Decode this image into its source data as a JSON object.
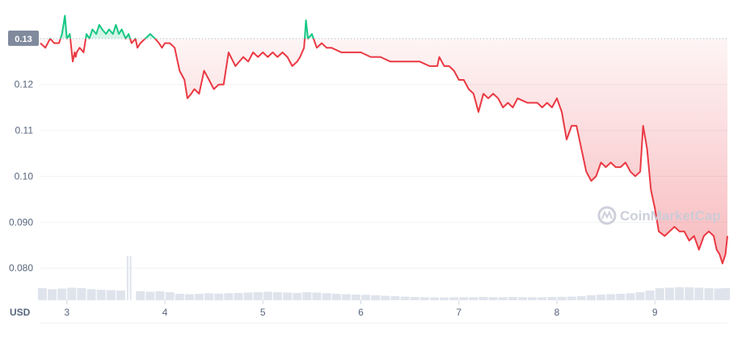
{
  "chart_data": {
    "type": "line",
    "currency_label": "USD",
    "reference_value": 0.13,
    "reference_label": "0.13",
    "ylim": [
      0.073,
      0.137
    ],
    "xlim": [
      2.73,
      9.74
    ],
    "y_ticks": [
      {
        "value": 0.08,
        "label": "0.080"
      },
      {
        "value": 0.09,
        "label": "0.090"
      },
      {
        "value": 0.1,
        "label": "0.10"
      },
      {
        "value": 0.11,
        "label": "0.11"
      },
      {
        "value": 0.12,
        "label": "0.12"
      }
    ],
    "x_ticks": [
      {
        "value": 3,
        "label": "3"
      },
      {
        "value": 4,
        "label": "4"
      },
      {
        "value": 5,
        "label": "5"
      },
      {
        "value": 6,
        "label": "6"
      },
      {
        "value": 7,
        "label": "7"
      },
      {
        "value": 8,
        "label": "8"
      },
      {
        "value": 9,
        "label": "9"
      }
    ],
    "colors": {
      "above": "#16c784",
      "below": "#ea3943",
      "volume": "#dfe4ec",
      "grid": "#eff2f5",
      "reference": "#a6b0c3",
      "ref_label_bg": "#808a9d"
    },
    "series": [
      {
        "x": [
          2.73,
          2.78,
          2.83,
          2.87,
          2.92,
          2.95,
          2.98,
          3.0,
          3.03,
          3.06,
          3.08,
          3.09,
          3.1,
          3.13,
          3.17,
          3.2,
          3.23,
          3.26,
          3.3,
          3.33,
          3.36,
          3.4,
          3.43,
          3.47,
          3.5,
          3.53,
          3.56,
          3.6,
          3.63,
          3.66,
          3.7,
          3.72,
          3.75,
          3.8,
          3.85,
          3.9,
          3.94,
          3.97,
          4.0,
          4.05,
          4.1,
          4.15,
          4.2,
          4.23,
          4.27,
          4.3,
          4.35,
          4.4,
          4.45,
          4.5,
          4.55,
          4.6,
          4.65,
          4.72,
          4.8,
          4.85,
          4.9,
          4.95,
          5.0,
          5.05,
          5.1,
          5.15,
          5.2,
          5.25,
          5.3,
          5.35,
          5.38,
          5.42,
          5.44,
          5.46,
          5.5,
          5.55,
          5.6,
          5.65,
          5.7,
          5.8,
          5.9,
          6.0,
          6.1,
          6.2,
          6.3,
          6.4,
          6.5,
          6.6,
          6.7,
          6.78,
          6.8,
          6.85,
          6.9,
          6.95,
          7.0,
          7.05,
          7.1,
          7.15,
          7.2,
          7.25,
          7.3,
          7.35,
          7.4,
          7.45,
          7.5,
          7.55,
          7.6,
          7.7,
          7.8,
          7.85,
          7.9,
          7.95,
          8.0,
          8.05,
          8.1,
          8.15,
          8.2,
          8.25,
          8.3,
          8.35,
          8.4,
          8.45,
          8.5,
          8.55,
          8.6,
          8.65,
          8.7,
          8.75,
          8.8,
          8.85,
          8.88,
          8.92,
          8.96,
          9.0,
          9.04,
          9.1,
          9.15,
          9.2,
          9.25,
          9.3,
          9.35,
          9.4,
          9.45,
          9.5,
          9.55,
          9.6,
          9.63,
          9.66,
          9.69,
          9.72,
          9.74
        ],
        "y": [
          0.129,
          0.128,
          0.13,
          0.129,
          0.129,
          0.131,
          0.135,
          0.13,
          0.131,
          0.125,
          0.127,
          0.126,
          0.127,
          0.128,
          0.127,
          0.131,
          0.13,
          0.132,
          0.131,
          0.133,
          0.132,
          0.131,
          0.132,
          0.131,
          0.133,
          0.131,
          0.132,
          0.13,
          0.131,
          0.129,
          0.13,
          0.128,
          0.129,
          0.13,
          0.131,
          0.13,
          0.129,
          0.128,
          0.129,
          0.129,
          0.128,
          0.123,
          0.121,
          0.117,
          0.118,
          0.119,
          0.118,
          0.123,
          0.121,
          0.119,
          0.12,
          0.12,
          0.127,
          0.124,
          0.126,
          0.125,
          0.127,
          0.126,
          0.127,
          0.126,
          0.127,
          0.126,
          0.127,
          0.126,
          0.124,
          0.125,
          0.126,
          0.128,
          0.134,
          0.13,
          0.131,
          0.128,
          0.129,
          0.128,
          0.128,
          0.127,
          0.127,
          0.127,
          0.126,
          0.126,
          0.125,
          0.125,
          0.125,
          0.125,
          0.124,
          0.124,
          0.126,
          0.124,
          0.124,
          0.123,
          0.121,
          0.121,
          0.119,
          0.118,
          0.114,
          0.118,
          0.117,
          0.118,
          0.117,
          0.115,
          0.116,
          0.115,
          0.117,
          0.116,
          0.116,
          0.115,
          0.116,
          0.115,
          0.117,
          0.114,
          0.108,
          0.111,
          0.111,
          0.106,
          0.101,
          0.099,
          0.1,
          0.103,
          0.102,
          0.103,
          0.102,
          0.102,
          0.103,
          0.101,
          0.1,
          0.101,
          0.111,
          0.106,
          0.097,
          0.093,
          0.088,
          0.087,
          0.088,
          0.089,
          0.088,
          0.088,
          0.086,
          0.087,
          0.084,
          0.087,
          0.088,
          0.087,
          0.084,
          0.083,
          0.081,
          0.083,
          0.087
        ]
      }
    ],
    "volume": [
      {
        "x": 2.75,
        "v": 0.6
      },
      {
        "x": 2.85,
        "v": 0.55
      },
      {
        "x": 2.95,
        "v": 0.58
      },
      {
        "x": 3.05,
        "v": 0.62
      },
      {
        "x": 3.15,
        "v": 0.6
      },
      {
        "x": 3.25,
        "v": 0.55
      },
      {
        "x": 3.35,
        "v": 0.52
      },
      {
        "x": 3.45,
        "v": 0.5
      },
      {
        "x": 3.55,
        "v": 0.48
      },
      {
        "x": 3.62,
        "v": 2.2
      },
      {
        "x": 3.65,
        "v": 2.2
      },
      {
        "x": 3.75,
        "v": 0.45
      },
      {
        "x": 3.85,
        "v": 0.42
      },
      {
        "x": 3.95,
        "v": 0.45
      },
      {
        "x": 4.05,
        "v": 0.4
      },
      {
        "x": 4.15,
        "v": 0.32
      },
      {
        "x": 4.25,
        "v": 0.3
      },
      {
        "x": 4.35,
        "v": 0.32
      },
      {
        "x": 4.45,
        "v": 0.35
      },
      {
        "x": 4.55,
        "v": 0.33
      },
      {
        "x": 4.65,
        "v": 0.35
      },
      {
        "x": 4.75,
        "v": 0.36
      },
      {
        "x": 4.85,
        "v": 0.38
      },
      {
        "x": 4.95,
        "v": 0.4
      },
      {
        "x": 5.05,
        "v": 0.42
      },
      {
        "x": 5.15,
        "v": 0.4
      },
      {
        "x": 5.25,
        "v": 0.38
      },
      {
        "x": 5.35,
        "v": 0.36
      },
      {
        "x": 5.45,
        "v": 0.4
      },
      {
        "x": 5.55,
        "v": 0.38
      },
      {
        "x": 5.65,
        "v": 0.35
      },
      {
        "x": 5.75,
        "v": 0.32
      },
      {
        "x": 5.85,
        "v": 0.3
      },
      {
        "x": 5.95,
        "v": 0.28
      },
      {
        "x": 6.05,
        "v": 0.27
      },
      {
        "x": 6.15,
        "v": 0.25
      },
      {
        "x": 6.25,
        "v": 0.22
      },
      {
        "x": 6.35,
        "v": 0.2
      },
      {
        "x": 6.45,
        "v": 0.18
      },
      {
        "x": 6.55,
        "v": 0.16
      },
      {
        "x": 6.65,
        "v": 0.15
      },
      {
        "x": 6.75,
        "v": 0.14
      },
      {
        "x": 6.85,
        "v": 0.14
      },
      {
        "x": 6.95,
        "v": 0.15
      },
      {
        "x": 7.05,
        "v": 0.15
      },
      {
        "x": 7.15,
        "v": 0.15
      },
      {
        "x": 7.25,
        "v": 0.16
      },
      {
        "x": 7.35,
        "v": 0.15
      },
      {
        "x": 7.45,
        "v": 0.15
      },
      {
        "x": 7.55,
        "v": 0.16
      },
      {
        "x": 7.65,
        "v": 0.15
      },
      {
        "x": 7.75,
        "v": 0.15
      },
      {
        "x": 7.85,
        "v": 0.15
      },
      {
        "x": 7.95,
        "v": 0.16
      },
      {
        "x": 8.05,
        "v": 0.17
      },
      {
        "x": 8.15,
        "v": 0.18
      },
      {
        "x": 8.25,
        "v": 0.2
      },
      {
        "x": 8.35,
        "v": 0.25
      },
      {
        "x": 8.45,
        "v": 0.28
      },
      {
        "x": 8.55,
        "v": 0.3
      },
      {
        "x": 8.65,
        "v": 0.32
      },
      {
        "x": 8.75,
        "v": 0.35
      },
      {
        "x": 8.85,
        "v": 0.4
      },
      {
        "x": 8.95,
        "v": 0.48
      },
      {
        "x": 9.05,
        "v": 0.6
      },
      {
        "x": 9.15,
        "v": 0.62
      },
      {
        "x": 9.25,
        "v": 0.65
      },
      {
        "x": 9.35,
        "v": 0.64
      },
      {
        "x": 9.45,
        "v": 0.62
      },
      {
        "x": 9.55,
        "v": 0.6
      },
      {
        "x": 9.65,
        "v": 0.58
      },
      {
        "x": 9.72,
        "v": 0.6
      }
    ],
    "volume_max": 2.2
  },
  "watermark": {
    "text": "CoinMarketCap",
    "icon": "coinmarketcap-logo-icon"
  }
}
